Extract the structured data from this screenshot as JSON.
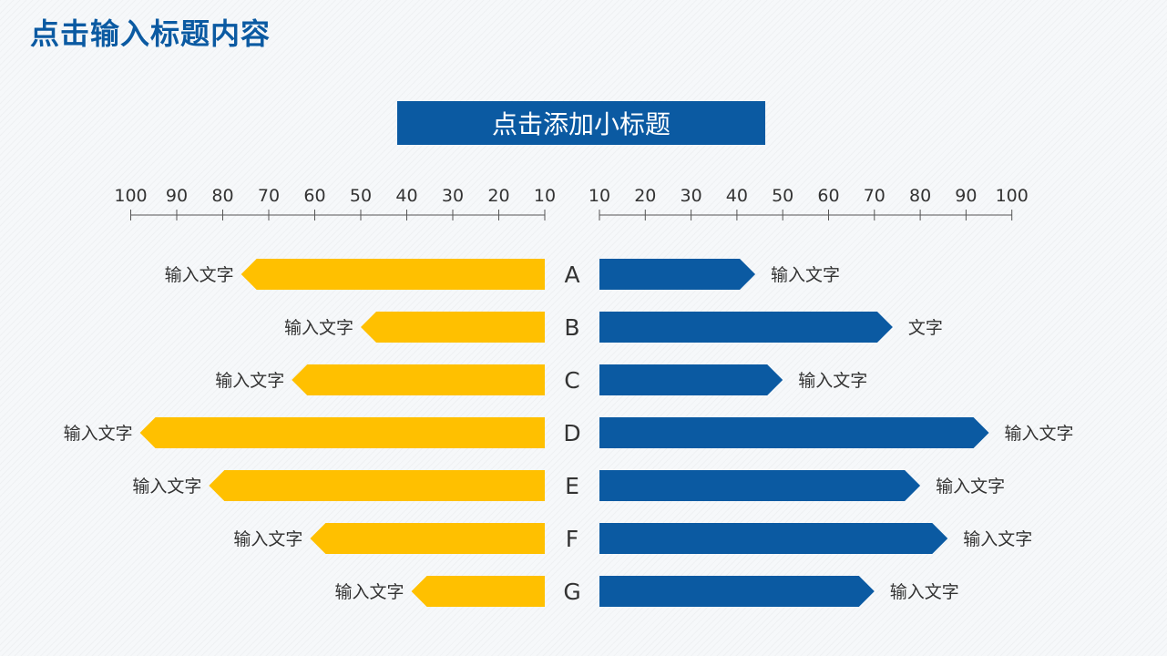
{
  "title": "点击输入标题内容",
  "subtitle": "点击添加小标题",
  "colors": {
    "title": "#0b5aa2",
    "left_series": "#ffc000",
    "right_series": "#0b5aa2",
    "axis": "#555555",
    "text": "#333333"
  },
  "chart_data": {
    "type": "bar",
    "orientation": "horizontal-butterfly",
    "categories": [
      "A",
      "B",
      "C",
      "D",
      "E",
      "F",
      "G"
    ],
    "left_axis": {
      "ticks": [
        100,
        90,
        80,
        70,
        60,
        50,
        40,
        30,
        20,
        10
      ],
      "direction": "decreasing-left-to-right"
    },
    "right_axis": {
      "ticks": [
        10,
        20,
        30,
        40,
        50,
        60,
        70,
        80,
        90,
        100
      ],
      "direction": "increasing-left-to-right"
    },
    "series": [
      {
        "side": "left",
        "color": "#ffc000",
        "values": [
          76,
          50,
          65,
          98,
          83,
          61,
          39
        ],
        "labels": [
          "输入文字",
          "输入文字",
          "输入文字",
          "输入文字",
          "输入文字",
          "输入文字",
          "输入文字"
        ]
      },
      {
        "side": "right",
        "color": "#0b5aa2",
        "values": [
          44,
          74,
          50,
          95,
          80,
          86,
          70
        ],
        "labels": [
          "输入文字",
          "文字",
          "输入文字",
          "输入文字",
          "输入文字",
          "输入文字",
          "输入文字"
        ]
      }
    ]
  }
}
